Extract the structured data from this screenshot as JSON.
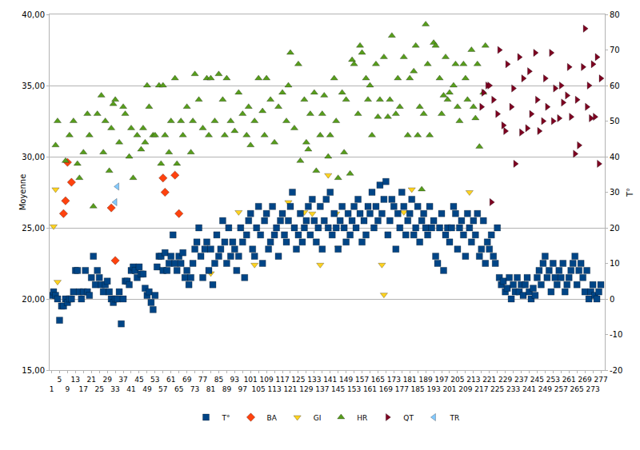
{
  "chart_data": {
    "type": "scatter",
    "y_label": "Moyenne",
    "y2_label": "T°",
    "grid": true,
    "legend": "bottom",
    "xlim": [
      0,
      279
    ],
    "xticks": [
      1,
      5,
      9,
      13,
      17,
      21,
      25,
      29,
      33,
      37,
      41,
      45,
      49,
      53,
      57,
      61,
      65,
      69,
      73,
      77,
      81,
      85,
      89,
      93,
      97,
      101,
      105,
      109,
      113,
      117,
      121,
      125,
      129,
      133,
      137,
      141,
      145,
      149,
      153,
      157,
      161,
      165,
      169,
      173,
      177,
      181,
      185,
      189,
      193,
      197,
      201,
      205,
      209,
      213,
      217,
      221,
      225,
      229,
      233,
      237,
      241,
      245,
      249,
      253,
      257,
      261,
      265,
      269,
      273,
      277
    ],
    "ylim": [
      15,
      40
    ],
    "yticks": [
      {
        "value": 15,
        "label": "15,00"
      },
      {
        "value": 20,
        "label": "20,00"
      },
      {
        "value": 25,
        "label": "25,00"
      },
      {
        "value": 30,
        "label": "30,00"
      },
      {
        "value": 35,
        "label": "35,00"
      },
      {
        "value": 40,
        "label": "40,00"
      }
    ],
    "y2lim": [
      -20,
      80
    ],
    "y2ticks": [
      -20,
      -10,
      0,
      10,
      20,
      30,
      40,
      50,
      60,
      70,
      80
    ],
    "series": [
      {
        "name": "T°",
        "color": "#004586",
        "marker": "square",
        "axis": "y2",
        "x": [
          1,
          2,
          3,
          4,
          5,
          6,
          7,
          8,
          9,
          10,
          11,
          12,
          13,
          14,
          15,
          16,
          17,
          18,
          19,
          20,
          21,
          22,
          23,
          24,
          25,
          26,
          27,
          28,
          29,
          30,
          31,
          32,
          33,
          34,
          35,
          36,
          37,
          38,
          39,
          40,
          41,
          42,
          43,
          44,
          45,
          46,
          47,
          48,
          49,
          50,
          51,
          52,
          53,
          54,
          55,
          56,
          57,
          58,
          59,
          60,
          61,
          62,
          63,
          64,
          65,
          66,
          67,
          68,
          69,
          70,
          71,
          72,
          73,
          74,
          75,
          76,
          77,
          78,
          79,
          80,
          81,
          82,
          83,
          84,
          85,
          86,
          87,
          88,
          89,
          90,
          91,
          92,
          93,
          94,
          95,
          96,
          97,
          98,
          99,
          100,
          101,
          102,
          103,
          104,
          105,
          106,
          107,
          108,
          109,
          110,
          111,
          112,
          113,
          114,
          115,
          116,
          117,
          118,
          119,
          120,
          121,
          122,
          123,
          124,
          125,
          126,
          127,
          128,
          129,
          130,
          131,
          132,
          133,
          134,
          135,
          136,
          137,
          138,
          139,
          140,
          141,
          142,
          143,
          144,
          145,
          146,
          147,
          148,
          149,
          150,
          151,
          152,
          153,
          154,
          155,
          156,
          157,
          158,
          159,
          160,
          161,
          162,
          163,
          164,
          165,
          166,
          167,
          168,
          169,
          170,
          171,
          172,
          173,
          174,
          175,
          176,
          177,
          178,
          179,
          180,
          181,
          182,
          183,
          184,
          185,
          186,
          187,
          188,
          189,
          190,
          191,
          192,
          193,
          194,
          195,
          196,
          197,
          198,
          199,
          200,
          201,
          202,
          203,
          204,
          205,
          206,
          207,
          208,
          209,
          210,
          211,
          212,
          213,
          214,
          215,
          216,
          217,
          218,
          219,
          220,
          221,
          222,
          223,
          224,
          225,
          226,
          227,
          228,
          229,
          230,
          231,
          232,
          233,
          234,
          235,
          236,
          237,
          238,
          239,
          240,
          241,
          242,
          243,
          244,
          245,
          246,
          247,
          248,
          249,
          250,
          251,
          252,
          253,
          254,
          255,
          256,
          257,
          258,
          259,
          260,
          261,
          262,
          263,
          264,
          265,
          266,
          267,
          268,
          269,
          270,
          271,
          272,
          273,
          274,
          275,
          276,
          277
        ],
        "values": [
          1,
          2,
          1,
          0,
          -6,
          -2,
          -2,
          0,
          -1,
          0,
          0,
          2,
          8,
          8,
          2,
          0,
          2,
          8,
          2,
          1,
          6,
          12,
          4,
          8,
          6,
          4,
          2,
          4,
          5,
          2,
          0,
          -1,
          0,
          0,
          2,
          -7,
          0,
          5,
          5,
          4,
          8,
          9,
          8,
          6,
          9,
          7,
          7,
          3,
          1,
          2,
          -1,
          -3,
          1,
          9,
          12,
          12,
          8,
          13,
          8,
          10,
          12,
          18,
          10,
          8,
          12,
          10,
          13,
          6,
          8,
          4,
          6,
          10,
          14,
          16,
          20,
          12,
          6,
          14,
          16,
          8,
          14,
          4,
          10,
          18,
          12,
          14,
          22,
          16,
          10,
          20,
          12,
          16,
          14,
          8,
          12,
          20,
          16,
          6,
          18,
          22,
          24,
          14,
          12,
          20,
          26,
          18,
          10,
          22,
          24,
          14,
          16,
          26,
          18,
          20,
          12,
          22,
          24,
          18,
          16,
          22,
          26,
          30,
          20,
          14,
          18,
          24,
          16,
          20,
          22,
          26,
          18,
          28,
          22,
          16,
          20,
          26,
          14,
          22,
          28,
          20,
          30,
          18,
          24,
          20,
          14,
          22,
          26,
          20,
          16,
          24,
          18,
          22,
          26,
          20,
          28,
          24,
          16,
          22,
          18,
          26,
          24,
          30,
          20,
          26,
          22,
          32,
          24,
          28,
          33,
          18,
          22,
          28,
          26,
          14,
          24,
          20,
          30,
          26,
          18,
          22,
          24,
          28,
          18,
          20,
          26,
          16,
          22,
          24,
          20,
          18,
          26,
          20,
          22,
          12,
          10,
          20,
          24,
          8,
          18,
          20,
          16,
          20,
          26,
          24,
          14,
          20,
          22,
          18,
          12,
          24,
          20,
          16,
          22,
          18,
          24,
          12,
          14,
          22,
          10,
          16,
          14,
          18,
          12,
          10,
          20,
          6,
          4,
          5,
          2,
          3,
          6,
          0,
          4,
          2,
          6,
          2,
          4,
          1,
          4,
          6,
          2,
          0,
          3,
          1,
          6,
          8,
          4,
          10,
          12,
          6,
          8,
          2,
          10,
          6,
          4,
          8,
          6,
          10,
          2,
          4,
          6,
          8,
          10,
          12,
          4,
          8,
          10,
          6,
          2,
          8,
          0,
          2,
          4,
          1,
          0,
          2,
          4
        ]
      },
      {
        "name": "BA",
        "color": "#ff420e",
        "marker": "diamond",
        "x": [
          7,
          8,
          9,
          11,
          31,
          33,
          57,
          58,
          63,
          65
        ],
        "values": [
          26.0,
          26.9,
          29.6,
          28.2,
          26.4,
          22.7,
          28.5,
          27.5,
          28.7,
          26.0
        ]
      },
      {
        "name": "GI",
        "color": "#ffd320",
        "marker": "triangle-down",
        "x": [
          2,
          3,
          4,
          81,
          95,
          103,
          120,
          128,
          132,
          136,
          140,
          144,
          145,
          167,
          168,
          178,
          182,
          211
        ],
        "values": [
          25.1,
          27.7,
          21.2,
          21.8,
          26.1,
          22.4,
          26.8,
          26.1,
          26.0,
          22.4,
          28.7,
          26.0,
          23.6,
          22.4,
          20.3,
          26.1,
          27.7,
          27.5
        ]
      },
      {
        "name": "HR",
        "color": "#579d1c",
        "marker": "triangle-up",
        "x": [
          3,
          4,
          8,
          10,
          12,
          14,
          15,
          17,
          19,
          20,
          22,
          24,
          26,
          27,
          28,
          30,
          31,
          32,
          33,
          35,
          37,
          38,
          40,
          41,
          42,
          44,
          46,
          47,
          48,
          49,
          50,
          52,
          53,
          55,
          56,
          57,
          58,
          60,
          61,
          63,
          64,
          66,
          67,
          69,
          71,
          72,
          73,
          75,
          77,
          79,
          80,
          81,
          83,
          85,
          87,
          88,
          89,
          91,
          93,
          95,
          97,
          99,
          100,
          101,
          103,
          105,
          107,
          108,
          109,
          111,
          113,
          115,
          117,
          119,
          120,
          121,
          123,
          125,
          126,
          128,
          129,
          130,
          131,
          133,
          134,
          136,
          137,
          138,
          140,
          141,
          143,
          144,
          145,
          147,
          148,
          149,
          151,
          152,
          153,
          155,
          156,
          157,
          159,
          160,
          161,
          162,
          164,
          165,
          166,
          168,
          170,
          171,
          172,
          174,
          175,
          176,
          178,
          180,
          181,
          183,
          184,
          185,
          186,
          187,
          188,
          189,
          190,
          191,
          193,
          194,
          196,
          197,
          198,
          199,
          200,
          201,
          203,
          204,
          205,
          206,
          208,
          209,
          210,
          212,
          213,
          214,
          215,
          216,
          218,
          219
        ],
        "values": [
          30.8,
          32.5,
          29.7,
          31.5,
          32.5,
          29.5,
          28.5,
          30.3,
          33,
          31.5,
          26.5,
          33,
          34.3,
          30.3,
          32.5,
          29,
          32,
          33.7,
          34,
          31,
          33.5,
          33,
          30,
          32,
          28.5,
          31.5,
          30.5,
          32,
          31,
          35,
          33.5,
          31.5,
          31.5,
          35,
          29.5,
          35,
          31.5,
          30.3,
          32.5,
          35.5,
          29.5,
          32.5,
          31.5,
          33.5,
          30.3,
          32.5,
          35.8,
          34,
          32,
          35.5,
          31.5,
          35.5,
          32.5,
          35.8,
          34,
          31.5,
          35.5,
          32.5,
          31.8,
          34.5,
          33,
          31.5,
          33.5,
          30.8,
          32.5,
          35.5,
          33.2,
          31.5,
          35.5,
          34,
          31,
          33.5,
          34.5,
          32.5,
          35,
          37.3,
          32,
          36.5,
          29.7,
          34,
          31,
          30.5,
          33,
          34.5,
          29,
          31.5,
          33,
          34.3,
          30,
          31.5,
          35.5,
          32.5,
          28.5,
          34.5,
          30.3,
          34,
          28.8,
          36.8,
          36.5,
          33,
          37.8,
          37.3,
          35.5,
          34,
          35,
          31.5,
          36.5,
          32.8,
          34,
          37,
          32.8,
          34,
          38.5,
          33,
          35.5,
          33.5,
          37,
          31.5,
          35.5,
          36,
          37.8,
          31.5,
          33.5,
          27.7,
          33,
          39.3,
          36.5,
          31.5,
          38,
          37.8,
          35.5,
          33,
          34.3,
          37,
          34,
          34.5,
          35,
          36.5,
          33.5,
          32.5,
          36.5,
          35.5,
          34,
          37.5,
          33.5,
          32.7,
          36.5,
          30.7,
          34.5,
          37.8
        ]
      },
      {
        "name": "QT",
        "color": "#7e0021",
        "marker": "triangle-right",
        "x": [
          217,
          218,
          220,
          221,
          222,
          223,
          225,
          226,
          228,
          229,
          230,
          232,
          233,
          234,
          236,
          237,
          238,
          240,
          241,
          242,
          244,
          245,
          246,
          248,
          249,
          250,
          252,
          253,
          254,
          256,
          257,
          258,
          260,
          261,
          262,
          264,
          265,
          266,
          268,
          269,
          270,
          271,
          272,
          273,
          274,
          275,
          276,
          277
        ],
        "values": [
          33.5,
          34.5,
          35,
          35,
          26.8,
          34,
          33,
          37.5,
          32.2,
          31.8,
          36.5,
          33.5,
          34.8,
          29.5,
          37,
          31.7,
          35.5,
          32,
          36,
          33,
          37.3,
          34,
          31.8,
          32.5,
          35.5,
          33.5,
          37.3,
          32.5,
          34.8,
          32.7,
          35,
          33.8,
          34.3,
          36.3,
          32.8,
          30.2,
          34,
          30.8,
          36.3,
          39,
          33.5,
          35,
          32.7,
          36.5,
          32.8,
          37,
          29.5,
          35.5
        ]
      },
      {
        "name": "TR",
        "color": "#83caff",
        "marker": "triangle-left",
        "x": [
          33,
          34
        ],
        "values": [
          26.8,
          27.9
        ]
      }
    ]
  }
}
